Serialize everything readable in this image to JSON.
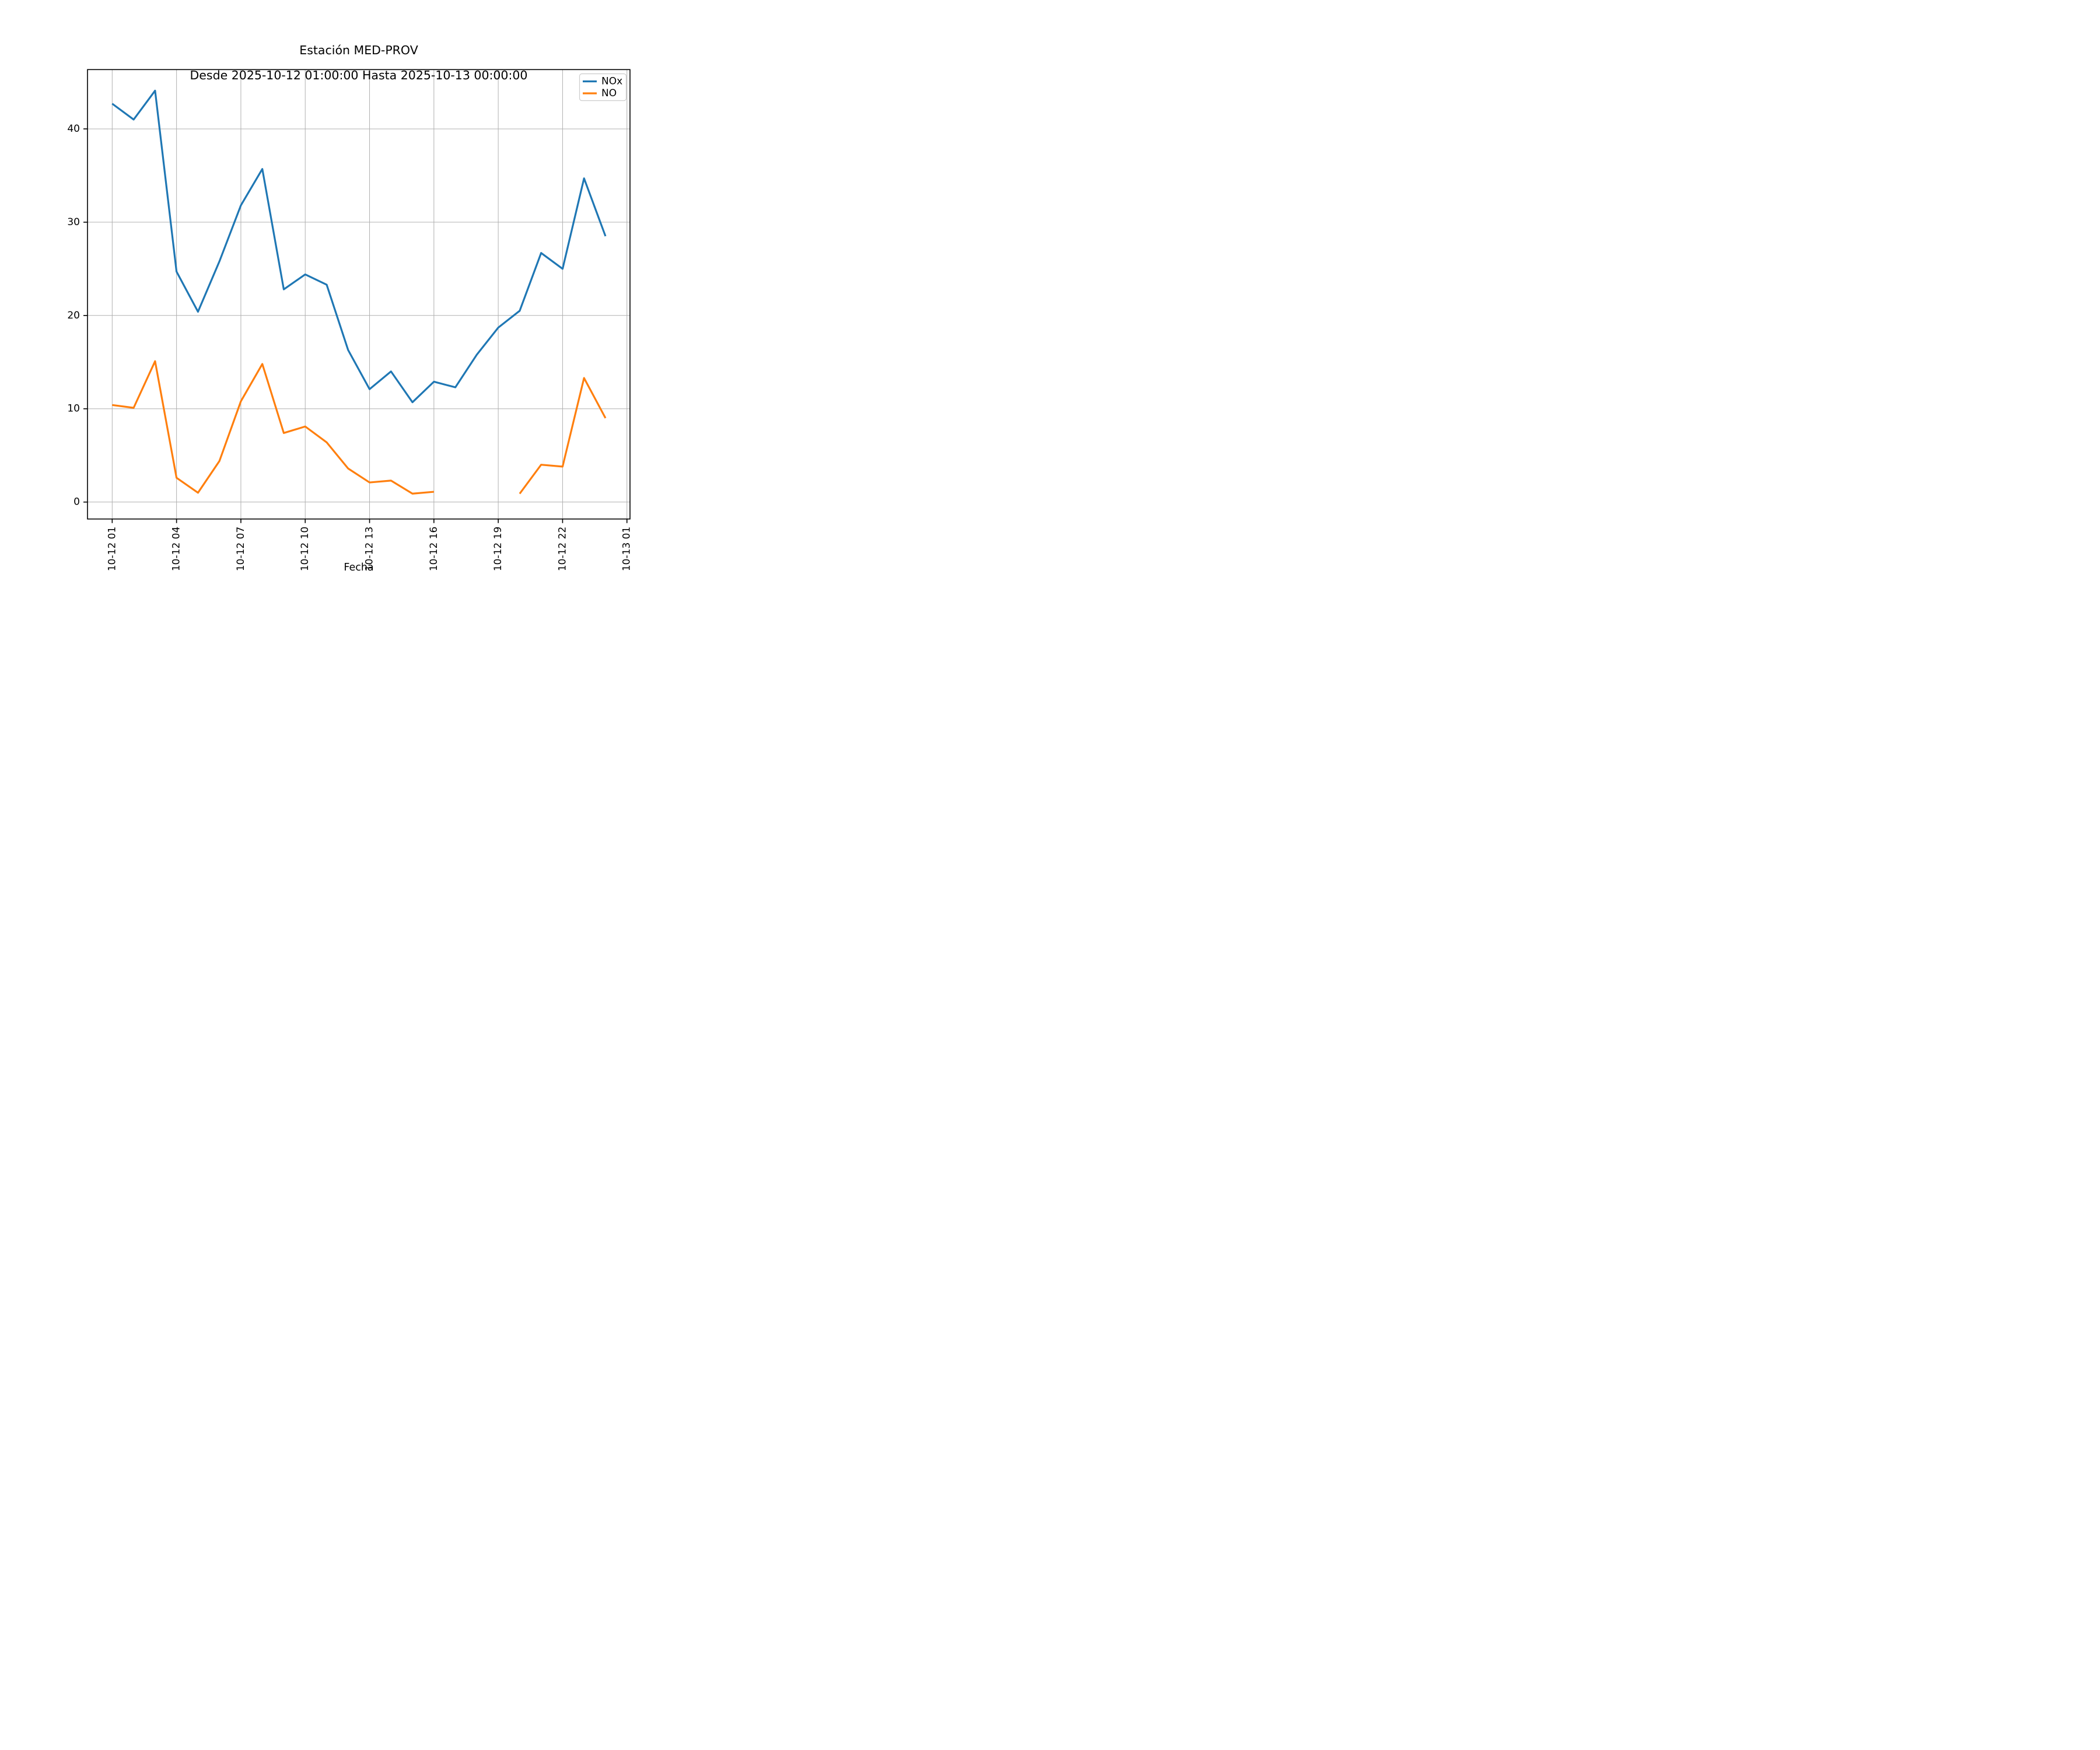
{
  "figure": {
    "background": "#ffffff",
    "title_line1": "Estación MED-PROV",
    "title_line2": "Desde 2025-10-12 01:00:00 Hasta 2025-10-13 00:00:00"
  },
  "chart_data": {
    "type": "line",
    "title": "Estación MED-PROV",
    "subtitle": "Desde 2025-10-12 01:00:00 Hasta 2025-10-13 00:00:00",
    "xlabel": "Fecha",
    "ylabel": "",
    "grid": true,
    "grid_color": "#b0b0b0",
    "axis_color": "#000000",
    "ylim": [
      -1.8,
      46.4
    ],
    "y_ticks": [
      0,
      10,
      20,
      30,
      40
    ],
    "x_tick_labels": [
      "10-12 01",
      "10-12 04",
      "10-12 07",
      "10-12 10",
      "10-12 13",
      "10-12 16",
      "10-12 19",
      "10-12 22",
      "10-13 01"
    ],
    "x_tick_indices": [
      0,
      3,
      6,
      9,
      12,
      15,
      18,
      21,
      24
    ],
    "x_tick_rotation": -90,
    "x": [
      "10-12 01",
      "10-12 02",
      "10-12 03",
      "10-12 04",
      "10-12 05",
      "10-12 06",
      "10-12 07",
      "10-12 08",
      "10-12 09",
      "10-12 10",
      "10-12 11",
      "10-12 12",
      "10-12 13",
      "10-12 14",
      "10-12 15",
      "10-12 16",
      "10-12 17",
      "10-12 18",
      "10-12 19",
      "10-12 20",
      "10-12 21",
      "10-12 22",
      "10-12 23",
      "10-13 00"
    ],
    "legend": {
      "position": "upper right",
      "entries": [
        "NOx",
        "NO"
      ]
    },
    "series": [
      {
        "name": "NOx",
        "color": "#1f77b4",
        "values": [
          42.7,
          41.0,
          44.1,
          24.7,
          20.4,
          25.8,
          31.8,
          35.7,
          22.8,
          24.4,
          23.3,
          16.3,
          12.1,
          14.0,
          10.7,
          12.9,
          12.3,
          15.8,
          18.7,
          20.5,
          26.7,
          25.0,
          34.7,
          28.5
        ]
      },
      {
        "name": "NO",
        "color": "#ff7f0e",
        "values": [
          10.4,
          10.1,
          15.1,
          2.6,
          1.0,
          4.4,
          10.8,
          14.8,
          7.4,
          8.1,
          6.4,
          3.6,
          2.1,
          2.3,
          0.9,
          1.1,
          null,
          null,
          null,
          0.9,
          4.0,
          3.8,
          13.3,
          9.0
        ]
      }
    ]
  }
}
